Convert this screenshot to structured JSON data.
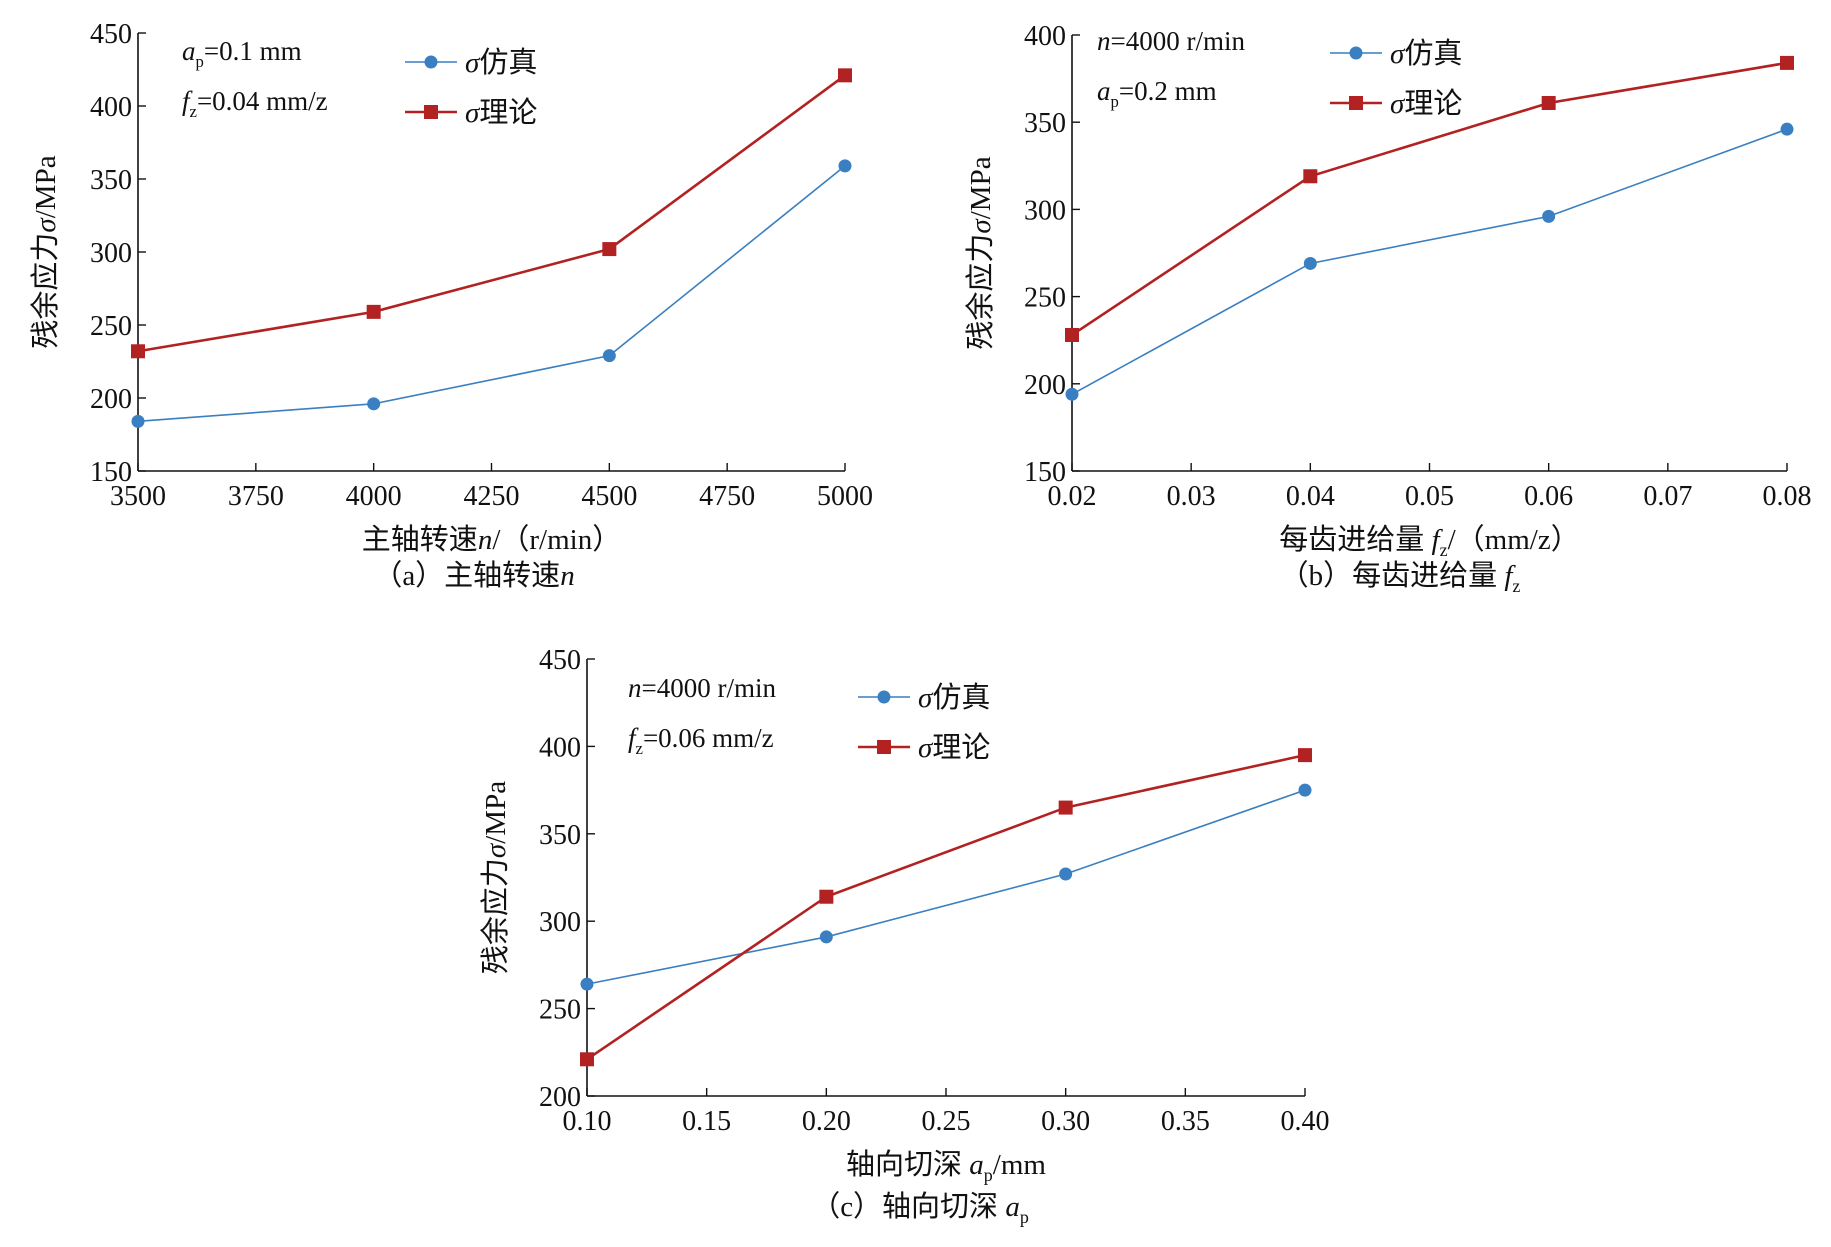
{
  "chart_data": [
    {
      "id": "a",
      "type": "line",
      "x": [
        3500,
        4000,
        4500,
        5000
      ],
      "xlim": [
        3500,
        5000
      ],
      "xticks": [
        "3500",
        "3750",
        "4000",
        "4250",
        "4500",
        "4750",
        "5000"
      ],
      "xtick_values": [
        3500,
        3750,
        4000,
        4250,
        4500,
        4750,
        5000
      ],
      "ylim": [
        150,
        450
      ],
      "yticks": [
        "150",
        "200",
        "250",
        "300",
        "350",
        "400",
        "450"
      ],
      "ytick_values": [
        150,
        200,
        250,
        300,
        350,
        400,
        450
      ],
      "xlabel": "主轴转速n/（r/min）",
      "ylabel": "残余应力σ/MPa",
      "caption": "（a）主轴转速n",
      "annotations": [
        "ap=0.1 mm",
        "fz=0.04 mm/z"
      ],
      "series": [
        {
          "name": "σ仿真",
          "color": "#3a7fc1",
          "marker": "circle",
          "values": [
            184,
            196,
            229,
            359
          ]
        },
        {
          "name": "σ理论",
          "color": "#b22222",
          "marker": "square",
          "values": [
            232,
            259,
            302,
            421
          ]
        }
      ]
    },
    {
      "id": "b",
      "type": "line",
      "x": [
        0.02,
        0.04,
        0.06,
        0.08
      ],
      "xlim": [
        0.02,
        0.08
      ],
      "xticks": [
        "0.02",
        "0.03",
        "0.04",
        "0.05",
        "0.06",
        "0.07",
        "0.08"
      ],
      "xtick_values": [
        0.02,
        0.03,
        0.04,
        0.05,
        0.06,
        0.07,
        0.08
      ],
      "ylim": [
        150,
        400
      ],
      "yticks": [
        "150",
        "200",
        "250",
        "300",
        "350",
        "400"
      ],
      "ytick_values": [
        150,
        200,
        250,
        300,
        350,
        400
      ],
      "xlabel": "每齿进给量 fz/（mm/z）",
      "ylabel": "残余应力σ/MPa",
      "caption": "（b）每齿进给量 fz",
      "annotations": [
        "n=4000 r/min",
        "ap=0.2 mm"
      ],
      "series": [
        {
          "name": "σ仿真",
          "color": "#3a7fc1",
          "marker": "circle",
          "values": [
            194,
            269,
            296,
            346
          ]
        },
        {
          "name": "σ理论",
          "color": "#b22222",
          "marker": "square",
          "values": [
            228,
            319,
            361,
            384
          ]
        }
      ]
    },
    {
      "id": "c",
      "type": "line",
      "x": [
        0.1,
        0.2,
        0.3,
        0.4
      ],
      "xlim": [
        0.1,
        0.4
      ],
      "xticks": [
        "0.10",
        "0.15",
        "0.20",
        "0.25",
        "0.30",
        "0.35",
        "0.40"
      ],
      "xtick_values": [
        0.1,
        0.15,
        0.2,
        0.25,
        0.3,
        0.35,
        0.4
      ],
      "ylim": [
        200,
        450
      ],
      "yticks": [
        "200",
        "250",
        "300",
        "350",
        "400",
        "450"
      ],
      "ytick_values": [
        200,
        250,
        300,
        350,
        400,
        450
      ],
      "xlabel": "轴向切深 ap/mm",
      "ylabel": "残余应力σ/MPa",
      "caption": "（c）轴向切深 ap",
      "annotations": [
        "n=4000 r/min",
        "fz=0.06 mm/z"
      ],
      "series": [
        {
          "name": "σ仿真",
          "color": "#3a7fc1",
          "marker": "circle",
          "values": [
            264,
            291,
            327,
            375
          ]
        },
        {
          "name": "σ理论",
          "color": "#b22222",
          "marker": "square",
          "values": [
            221,
            314,
            365,
            395
          ]
        }
      ]
    }
  ]
}
